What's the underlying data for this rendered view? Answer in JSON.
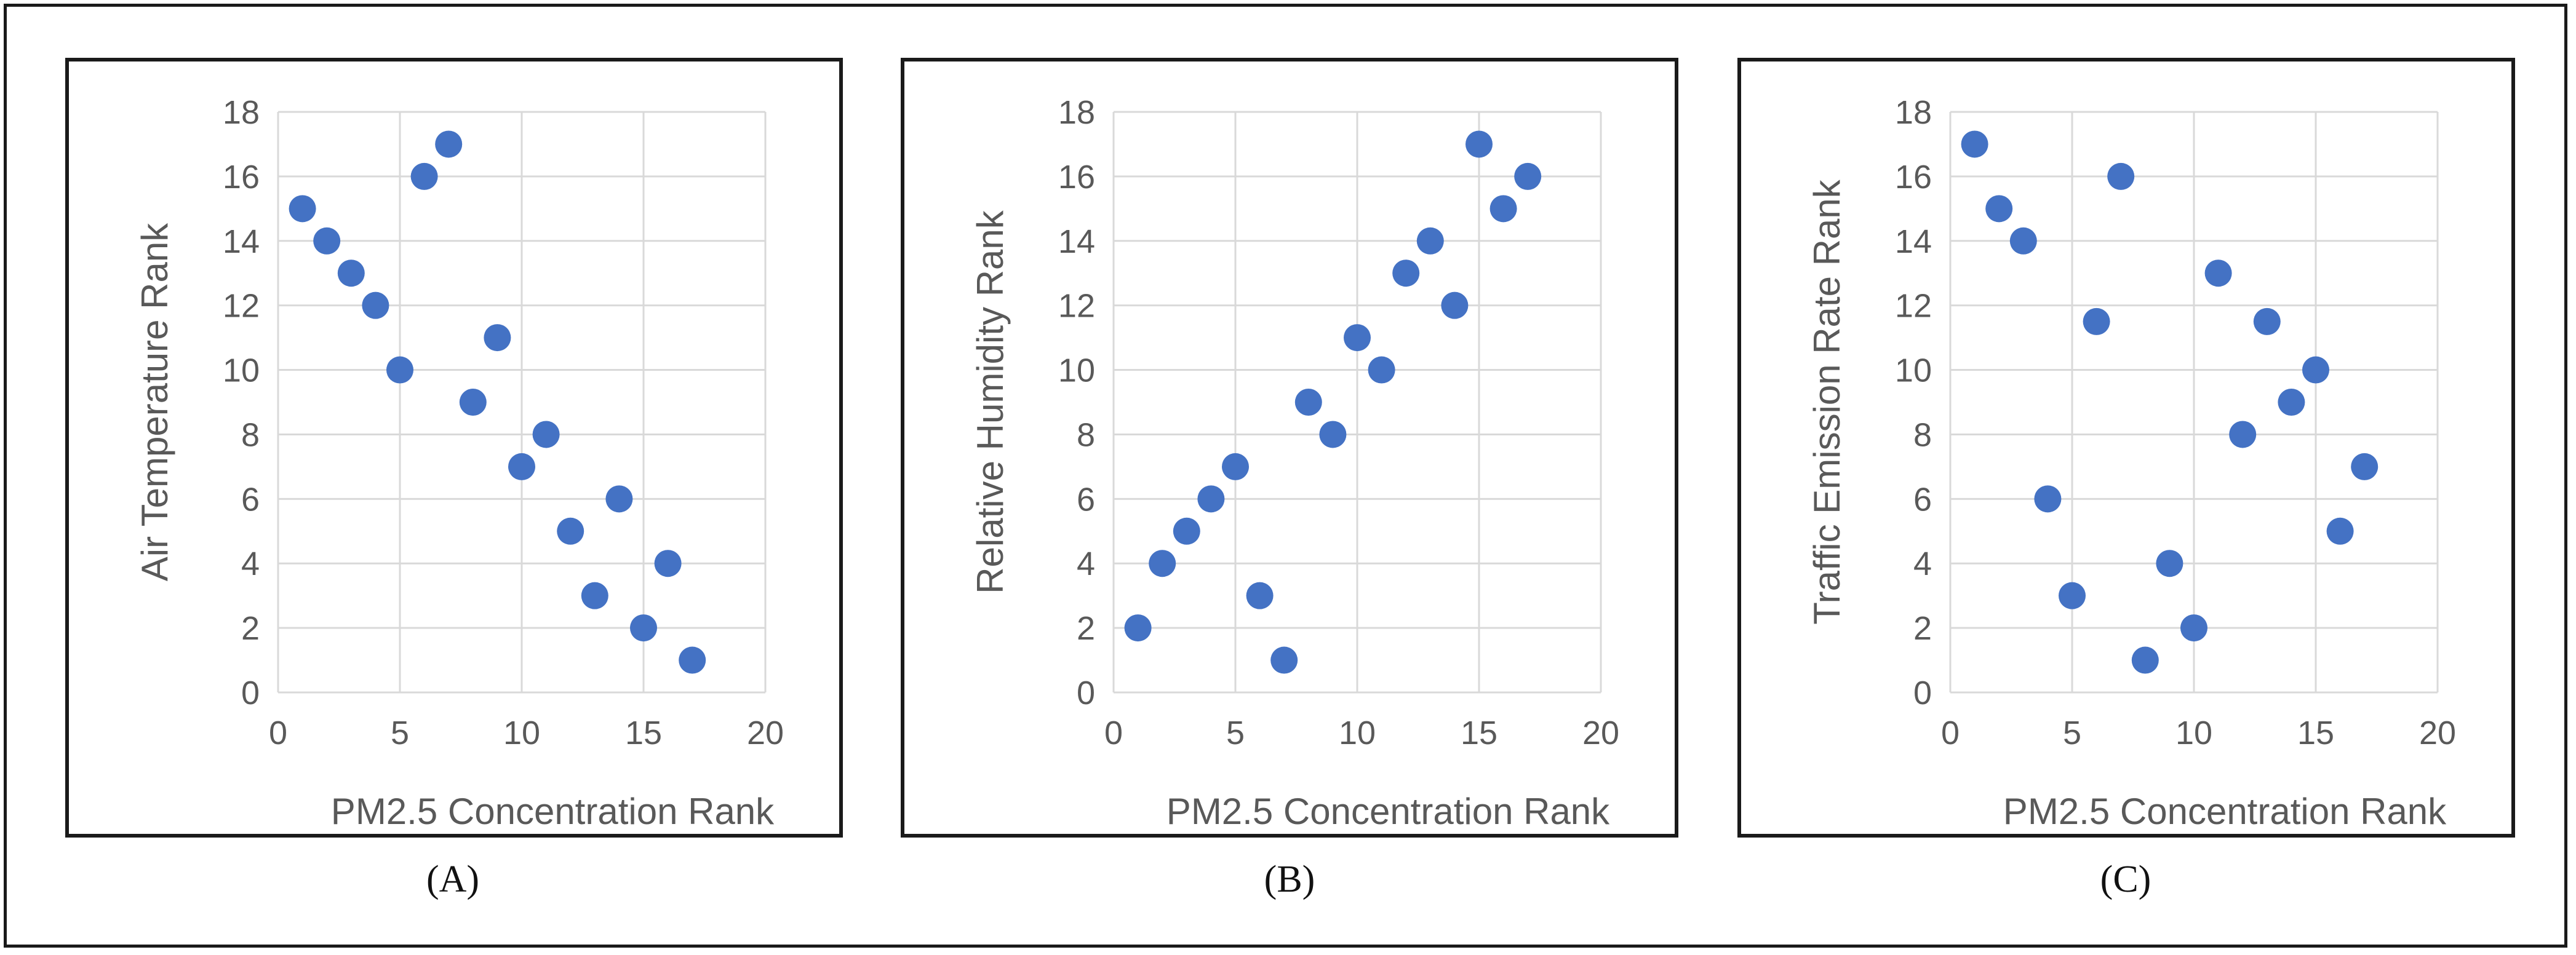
{
  "chart_data": [
    {
      "type": "scatter",
      "panel_label": "(A)",
      "title": "",
      "xlabel": "PM2.5 Concentration Rank",
      "ylabel": "Air Temperature Rank",
      "xlim": [
        0,
        20
      ],
      "ylim": [
        0,
        18
      ],
      "xticks": [
        "0",
        "5",
        "10",
        "15",
        "20"
      ],
      "yticks": [
        "0",
        "2",
        "4",
        "6",
        "8",
        "10",
        "12",
        "14",
        "16",
        "18"
      ],
      "grid": true,
      "marker_color": "#4472C4",
      "points": [
        {
          "x": 1,
          "y": 15
        },
        {
          "x": 2,
          "y": 14
        },
        {
          "x": 3,
          "y": 13
        },
        {
          "x": 4,
          "y": 12
        },
        {
          "x": 5,
          "y": 10
        },
        {
          "x": 6,
          "y": 16
        },
        {
          "x": 7,
          "y": 17
        },
        {
          "x": 8,
          "y": 9
        },
        {
          "x": 9,
          "y": 11
        },
        {
          "x": 10,
          "y": 7
        },
        {
          "x": 11,
          "y": 8
        },
        {
          "x": 12,
          "y": 5
        },
        {
          "x": 13,
          "y": 3
        },
        {
          "x": 14,
          "y": 6
        },
        {
          "x": 15,
          "y": 2
        },
        {
          "x": 16,
          "y": 4
        },
        {
          "x": 17,
          "y": 1
        }
      ]
    },
    {
      "type": "scatter",
      "panel_label": "(B)",
      "title": "",
      "xlabel": "PM2.5 Concentration Rank",
      "ylabel": "Relative Humidity Rank",
      "xlim": [
        0,
        20
      ],
      "ylim": [
        0,
        18
      ],
      "xticks": [
        "0",
        "5",
        "10",
        "15",
        "20"
      ],
      "yticks": [
        "0",
        "2",
        "4",
        "6",
        "8",
        "10",
        "12",
        "14",
        "16",
        "18"
      ],
      "grid": true,
      "marker_color": "#4472C4",
      "points": [
        {
          "x": 1,
          "y": 2
        },
        {
          "x": 2,
          "y": 4
        },
        {
          "x": 3,
          "y": 5
        },
        {
          "x": 4,
          "y": 6
        },
        {
          "x": 5,
          "y": 7
        },
        {
          "x": 6,
          "y": 3
        },
        {
          "x": 7,
          "y": 1
        },
        {
          "x": 8,
          "y": 9
        },
        {
          "x": 9,
          "y": 8
        },
        {
          "x": 10,
          "y": 11
        },
        {
          "x": 11,
          "y": 10
        },
        {
          "x": 12,
          "y": 13
        },
        {
          "x": 13,
          "y": 14
        },
        {
          "x": 14,
          "y": 12
        },
        {
          "x": 15,
          "y": 17
        },
        {
          "x": 16,
          "y": 15
        },
        {
          "x": 17,
          "y": 16
        }
      ]
    },
    {
      "type": "scatter",
      "panel_label": "(C)",
      "title": "",
      "xlabel": "PM2.5 Concentration Rank",
      "ylabel": "Traffic Emission Rate Rank",
      "xlim": [
        0,
        20
      ],
      "ylim": [
        0,
        18
      ],
      "xticks": [
        "0",
        "5",
        "10",
        "15",
        "20"
      ],
      "yticks": [
        "0",
        "2",
        "4",
        "6",
        "8",
        "10",
        "12",
        "14",
        "16",
        "18"
      ],
      "grid": true,
      "marker_color": "#4472C4",
      "points": [
        {
          "x": 1,
          "y": 17
        },
        {
          "x": 2,
          "y": 15
        },
        {
          "x": 3,
          "y": 14
        },
        {
          "x": 4,
          "y": 6
        },
        {
          "x": 5,
          "y": 3
        },
        {
          "x": 6,
          "y": 11.5
        },
        {
          "x": 7,
          "y": 16
        },
        {
          "x": 8,
          "y": 1
        },
        {
          "x": 9,
          "y": 4
        },
        {
          "x": 10,
          "y": 2
        },
        {
          "x": 11,
          "y": 13
        },
        {
          "x": 12,
          "y": 8
        },
        {
          "x": 13,
          "y": 11.5
        },
        {
          "x": 14,
          "y": 9
        },
        {
          "x": 15,
          "y": 10
        },
        {
          "x": 16,
          "y": 5
        },
        {
          "x": 17,
          "y": 7
        }
      ]
    }
  ]
}
